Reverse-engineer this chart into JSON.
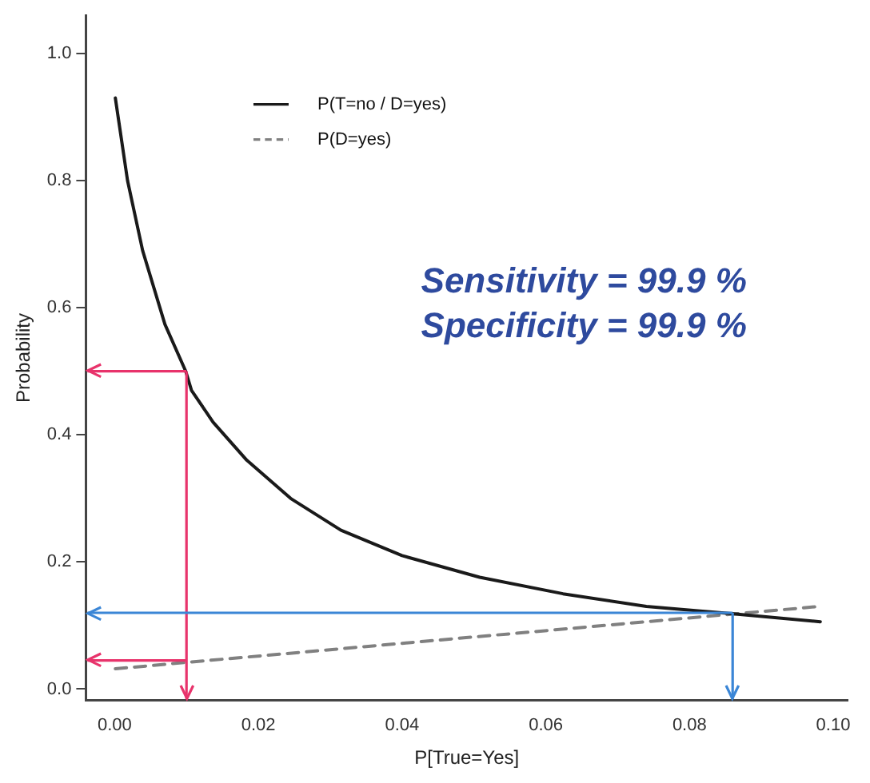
{
  "chart_data": {
    "type": "line",
    "xlabel": "P[True=Yes]",
    "ylabel": "Probability",
    "xlim": [
      -0.004,
      0.102
    ],
    "ylim": [
      -0.018,
      1.06
    ],
    "xticks": [
      {
        "value": 0,
        "label": "0.00"
      },
      {
        "value": 0.02,
        "label": "0.02"
      },
      {
        "value": 0.04,
        "label": "0.04"
      },
      {
        "value": 0.06,
        "label": "0.06"
      },
      {
        "value": 0.08,
        "label": "0.08"
      },
      {
        "value": 0.1,
        "label": "0.10"
      }
    ],
    "yticks": [
      {
        "value": 0,
        "label": "0.0"
      },
      {
        "value": 0.2,
        "label": "0.2"
      },
      {
        "value": 0.4,
        "label": "0.4"
      },
      {
        "value": 0.6,
        "label": "0.6"
      },
      {
        "value": 0.8,
        "label": "0.8"
      },
      {
        "value": 1,
        "label": "1.0"
      }
    ],
    "grid": false,
    "legend": "top left",
    "marker": "none",
    "series": [
      {
        "name": "P(T=no / D=yes)",
        "color": "#1a1a1a",
        "line_style": "solid",
        "x": [
          0.0001,
          0.0018,
          0.0039,
          0.007,
          0.0099,
          0.0107,
          0.0137,
          0.0184,
          0.0245,
          0.0315,
          0.04,
          0.0508,
          0.0624,
          0.074,
          0.0855,
          0.0982
        ],
        "values": [
          0.93,
          0.8,
          0.69,
          0.574,
          0.5,
          0.47,
          0.42,
          0.36,
          0.3,
          0.25,
          0.21,
          0.176,
          0.15,
          0.13,
          0.119,
          0.106
        ]
      },
      {
        "name": "P(D=yes)",
        "color": "#808080",
        "line_style": "dashed",
        "x": [
          0.0001,
          0.01,
          0.043,
          0.086,
          0.098
        ],
        "values": [
          0.032,
          0.042,
          0.075,
          0.118,
          0.13
        ]
      }
    ],
    "ref_lines": [
      {
        "axis": "y",
        "value": 0.5,
        "color": "#e8336b"
      },
      {
        "axis": "y",
        "value": 0.045,
        "color": "#e8336b"
      },
      {
        "axis": "x",
        "value": 0.01,
        "color": "#e8336b"
      },
      {
        "axis": "y",
        "value": 0.12,
        "color": "#3b86d6"
      },
      {
        "axis": "x",
        "value": 0.086,
        "color": "#3b86d6"
      }
    ],
    "annotations": [
      "Sensitivity = 99.9 %",
      "Specificity = 99.9 %"
    ]
  }
}
